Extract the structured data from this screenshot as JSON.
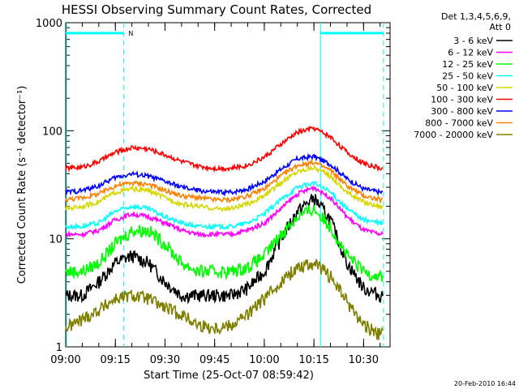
{
  "chart_data": {
    "type": "line",
    "title": "HESSI Observing Summary Count Rates, Corrected",
    "xlabel": "Start Time (25-Oct-07 08:59:42)",
    "ylabel": "Corrected Count Rate (s⁻¹ detector⁻¹)",
    "yscale": "log",
    "xlim_minutes_after_0900": [
      0,
      98
    ],
    "ylim": [
      1,
      1000
    ],
    "x_tick_labels": [
      "09:00",
      "09:15",
      "09:30",
      "09:45",
      "10:00",
      "10:15",
      "10:30"
    ],
    "x_tick_minutes": [
      0,
      15,
      30,
      45,
      60,
      75,
      90
    ],
    "y_tick_values": [
      1,
      10,
      100,
      1000
    ],
    "y_tick_labels": [
      "1",
      "10",
      "100",
      "1000"
    ],
    "legend_header": [
      "Det 1,3,4,5,6,9,",
      "Att 0"
    ],
    "legend_position": "right",
    "timestamp": "20-Feb-2010 16:44",
    "time_minutes_after_0900": [
      0,
      5,
      10,
      15,
      20,
      25,
      30,
      35,
      40,
      45,
      50,
      55,
      60,
      65,
      70,
      75,
      80,
      85,
      90,
      95
    ],
    "series": [
      {
        "name": "3 - 6 keV",
        "color": "#000000",
        "values": [
          3,
          3,
          4,
          6,
          7,
          6,
          4,
          3,
          3,
          3,
          3,
          3.5,
          5,
          10,
          18,
          24,
          15,
          6,
          3.5,
          3
        ]
      },
      {
        "name": "6 - 12 keV",
        "color": "#ff00ff",
        "values": [
          11,
          11,
          12,
          15,
          17,
          16,
          14,
          12,
          11,
          11,
          11,
          12,
          14,
          19,
          26,
          30,
          24,
          16,
          12,
          11
        ]
      },
      {
        "name": "12 - 25 keV",
        "color": "#00ff00",
        "values": [
          5,
          5,
          6,
          9,
          12,
          12,
          9,
          6,
          5,
          5,
          5,
          5.5,
          7,
          11,
          16,
          19,
          13,
          7,
          5,
          4.5
        ]
      },
      {
        "name": "25 - 50 keV",
        "color": "#00ffff",
        "values": [
          13,
          13,
          14,
          18,
          20,
          19,
          16,
          14,
          13,
          13,
          13,
          14,
          17,
          23,
          30,
          33,
          27,
          19,
          15,
          14
        ]
      },
      {
        "name": "50 - 100 keV",
        "color": "#d7d700",
        "values": [
          19,
          20,
          22,
          27,
          29,
          28,
          24,
          21,
          20,
          19,
          19,
          21,
          25,
          33,
          42,
          46,
          38,
          27,
          22,
          20
        ]
      },
      {
        "name": "100 - 300 keV",
        "color": "#ff0000",
        "values": [
          45,
          46,
          52,
          63,
          70,
          68,
          60,
          52,
          47,
          45,
          45,
          48,
          57,
          75,
          97,
          106,
          88,
          63,
          50,
          45
        ]
      },
      {
        "name": "300 - 800 keV",
        "color": "#0000ff",
        "values": [
          27,
          28,
          31,
          37,
          40,
          38,
          34,
          30,
          28,
          27,
          27,
          29,
          34,
          44,
          55,
          58,
          49,
          36,
          29,
          27
        ]
      },
      {
        "name": "800 - 7000 keV",
        "color": "#ff8000",
        "values": [
          23,
          24,
          26,
          31,
          33,
          32,
          28,
          25,
          24,
          23,
          23,
          25,
          29,
          38,
          48,
          51,
          43,
          31,
          25,
          23
        ]
      },
      {
        "name": "7000 - 20000 keV",
        "color": "#808000",
        "values": [
          1.5,
          1.8,
          2.2,
          2.8,
          3.0,
          2.8,
          2.3,
          2.0,
          1.6,
          1.5,
          1.6,
          2.0,
          2.8,
          4.0,
          5.5,
          6.0,
          4.5,
          2.6,
          1.6,
          1.3
        ]
      }
    ],
    "flag_bar": {
      "label": "N",
      "color": "#00ffff",
      "value": 800,
      "segments_minutes": [
        [
          0,
          17.5
        ],
        [
          77,
          96
        ]
      ]
    },
    "vertical_markers": {
      "solid_minutes": [
        0,
        77
      ],
      "dashed_minutes": [
        17.5,
        96
      ]
    }
  }
}
